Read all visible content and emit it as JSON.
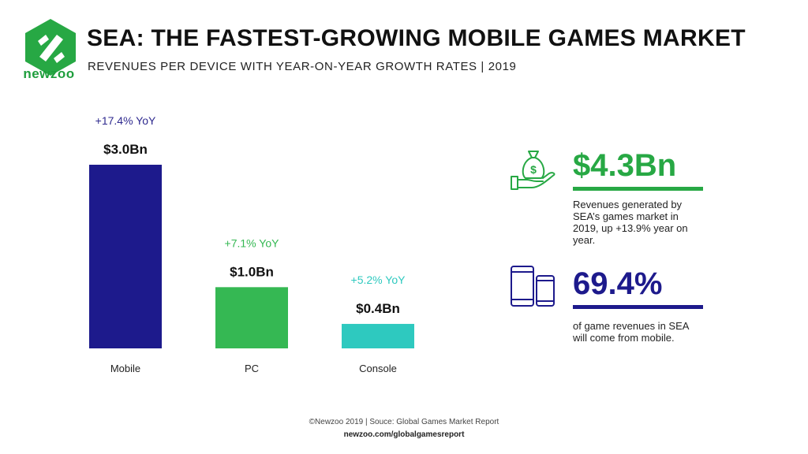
{
  "brand": {
    "name": "newzoo",
    "green": "#27a844",
    "dark_green": "#1f9e3d"
  },
  "title": "SEA: THE FASTEST-GROWING MOBILE GAMES MARKET",
  "subtitle": "REVENUES PER DEVICE WITH YEAR-ON-YEAR GROWTH RATES | 2019",
  "chart_data": {
    "type": "bar",
    "categories": [
      "Mobile",
      "PC",
      "Console"
    ],
    "values": [
      3.0,
      1.0,
      0.4
    ],
    "value_labels": [
      "$3.0Bn",
      "$1.0Bn",
      "$0.4Bn"
    ],
    "growth_labels": [
      "+17.4% YoY",
      "+7.1% YoY",
      "+5.2% YoY"
    ],
    "colors": [
      "#1d1a8c",
      "#35b853",
      "#2ec9bf"
    ],
    "growth_colors": [
      "#2f2a8f",
      "#35b853",
      "#2ec9bf"
    ],
    "ylim": [
      0,
      3.0
    ],
    "grid": false,
    "legend": "none",
    "xlabel": "",
    "ylabel": ""
  },
  "stats": [
    {
      "value": "$4.3Bn",
      "color": "#27a844",
      "icon": "money-bag-hand-icon",
      "description": "Revenues generated by SEA’s games market in 2019, up +13.9% year on year."
    },
    {
      "value": "69.4%",
      "color": "#1d1a8c",
      "icon": "mobile-devices-icon",
      "description": "of game revenues in SEA will come from mobile."
    }
  ],
  "footer": {
    "copyright": "©Newzoo 2019 | Souce: Global Games Market Report",
    "url": "newzoo.com/globalgamesreport"
  }
}
